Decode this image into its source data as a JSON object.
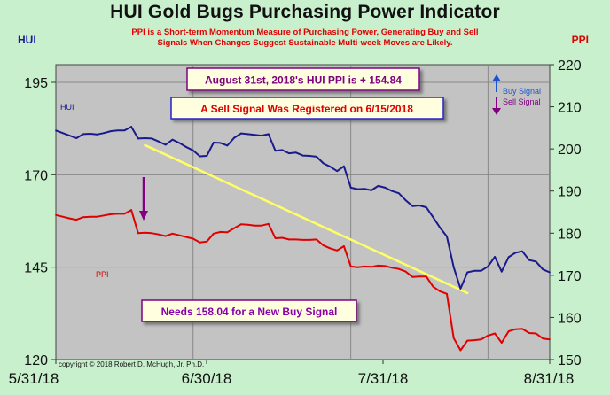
{
  "chart_data": {
    "type": "line",
    "title": "HUI Gold Bugs Purchasing Power Indicator",
    "subtitle_lines": [
      "PPI is a Short-term Momentum Measure of Purchasing Power, Generating Buy and Sell",
      "Signals When Changes Suggest Sustainable Multi-week Moves are Likely."
    ],
    "ylabel_left": "HUI",
    "ylabel_right": "PPI",
    "ylim_left": [
      120,
      195
    ],
    "ylim_right": [
      150,
      220
    ],
    "yticks_left": [
      120,
      145,
      170,
      195
    ],
    "yticks_right": [
      150,
      160,
      170,
      180,
      190,
      200,
      210,
      220
    ],
    "xticks": [
      "5/31/18",
      "6/30/18",
      "7/31/18",
      "8/31/18"
    ],
    "grid": true,
    "series": [
      {
        "name": "HUI",
        "axis": "left",
        "color": "#1a1a8c",
        "values": [
          182.0,
          181.3,
          180.6,
          179.9,
          181.0,
          181.1,
          180.9,
          181.3,
          181.8,
          182.0,
          182.0,
          183.0,
          179.8,
          179.9,
          179.8,
          179.0,
          178.1,
          179.5,
          178.6,
          177.5,
          176.6,
          175.0,
          175.1,
          178.7,
          178.6,
          177.9,
          180.0,
          181.2,
          181.0,
          180.8,
          180.6,
          181.0,
          176.5,
          176.7,
          175.8,
          176.0,
          175.2,
          175.1,
          174.9,
          173.1,
          172.2,
          171.0,
          172.3,
          166.5,
          166.1,
          166.2,
          165.8,
          167.0,
          166.5,
          165.6,
          165.0,
          163.1,
          161.5,
          161.7,
          161.2,
          158.5,
          155.7,
          153.3,
          145.0,
          139.2,
          143.6,
          144.0,
          144.0,
          145.2,
          147.8,
          143.8,
          147.7,
          148.9,
          149.3,
          146.9,
          146.5,
          144.4,
          143.6
        ]
      },
      {
        "name": "PPI",
        "axis": "right",
        "color": "#e00000",
        "values": [
          184.3,
          183.9,
          183.5,
          183.2,
          183.8,
          183.9,
          183.9,
          184.2,
          184.5,
          184.6,
          184.6,
          185.5,
          180.0,
          180.1,
          180.0,
          179.7,
          179.3,
          179.9,
          179.5,
          179.1,
          178.7,
          177.8,
          178.0,
          179.9,
          180.3,
          180.2,
          181.2,
          182.1,
          182.0,
          181.8,
          181.8,
          182.2,
          178.8,
          178.9,
          178.5,
          178.5,
          178.4,
          178.4,
          178.5,
          177.1,
          176.4,
          175.9,
          176.9,
          172.1,
          171.9,
          172.1,
          172.0,
          172.3,
          172.2,
          171.8,
          171.5,
          170.9,
          169.6,
          169.7,
          169.7,
          167.3,
          166.2,
          165.6,
          155.1,
          152.2,
          154.5,
          154.6,
          154.8,
          155.7,
          156.2,
          154.0,
          156.7,
          157.2,
          157.3,
          156.3,
          156.2,
          155.0,
          154.8
        ]
      }
    ],
    "annotations": [
      "August 31st, 2018's HUI PPI is + 154.84",
      "A Sell Signal Was Registered on 6/15/2018",
      "Needs 158.04  for a New Buy Signal",
      "Buy Signal",
      "Sell Signal",
      "copyright © 2018  Robert D. McHugh, Jr. Ph.D."
    ],
    "trendline": {
      "color": "#ffff66",
      "from_index": 13,
      "from_value_left": 178.0,
      "to_index": 60,
      "to_value_left": 138.0
    }
  },
  "colors": {
    "background": "#c9f0cd",
    "plot": "#c3c3c3",
    "hui": "#1a1a8c",
    "ppi": "#e00000",
    "annotation_text": "#800080",
    "signal_text": "#e00000",
    "needs_text": "#8800aa",
    "buy_arrow": "#1a55d0",
    "sell_arrow": "#800080",
    "trendline": "#ffff66"
  }
}
